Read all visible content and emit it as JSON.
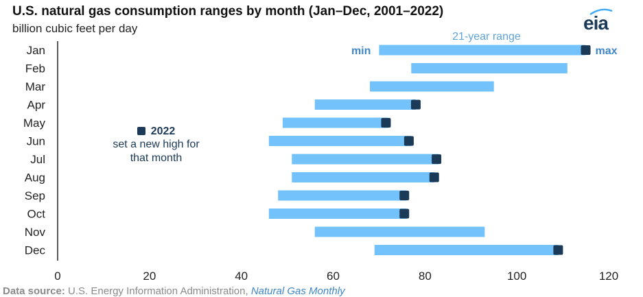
{
  "header": {
    "title": "U.S. natural gas consumption ranges by month (Jan–Dec, 2001–2022)",
    "subtitle": "billion cubic feet per day",
    "logo_text": "eia"
  },
  "legend": {
    "year": "2022",
    "text_line1": "set a new high for",
    "text_line2": "that month"
  },
  "annotations": {
    "range": "21-year range",
    "min": "min",
    "max": "max"
  },
  "source": {
    "label": "Data source:",
    "agency": "U.S. Energy Information Administration,",
    "publication": "Natural Gas Monthly"
  },
  "colors": {
    "range_bar": "#73c2fb",
    "marker_2022": "#1b3a57",
    "axis": "#222222"
  },
  "chart_data": {
    "type": "range-bar",
    "title": "U.S. natural gas consumption ranges by month (Jan–Dec, 2001–2022)",
    "subtitle": "billion cubic feet per day",
    "categories": [
      "Jan",
      "Feb",
      "Mar",
      "Apr",
      "May",
      "Jun",
      "Jul",
      "Aug",
      "Sep",
      "Oct",
      "Nov",
      "Dec"
    ],
    "series": [
      {
        "name": "21-year range",
        "min": [
          70,
          77,
          68,
          56,
          49,
          46,
          51,
          51,
          48,
          46,
          56,
          69
        ],
        "max": [
          115,
          111,
          95,
          78,
          72,
          77,
          83,
          82,
          76,
          76,
          93,
          109
        ]
      },
      {
        "name": "2022",
        "values": [
          115,
          null,
          null,
          78,
          71.5,
          76.5,
          82.5,
          82,
          75.5,
          75.5,
          null,
          109
        ]
      }
    ],
    "xlim": [
      0,
      120
    ],
    "xticks": [
      0,
      20,
      40,
      60,
      80,
      100,
      120
    ],
    "grid": false,
    "legend_position": "left-middle"
  }
}
